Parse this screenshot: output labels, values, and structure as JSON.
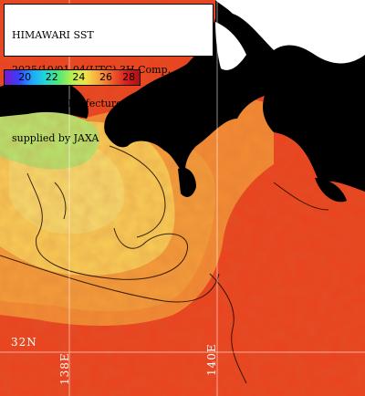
{
  "title": {
    "lines": [
      "HIMAWARI SST",
      "2025/10/01 04(UTC) 3H Comp.",
      "Kanagawa Prefecture",
      "supplied by JAXA"
    ]
  },
  "colorbar": {
    "labels": [
      "20",
      "22",
      "24",
      "26",
      "28"
    ],
    "range_min": 19,
    "range_max": 29
  },
  "grid": {
    "lat_label": "32N",
    "lon_labels": [
      "138E",
      "140E"
    ]
  },
  "colors": {
    "land": "#000000",
    "sea_warm": "#e9441f",
    "sea_mid": "#f39a3a",
    "sea_cool": "#f6d25c",
    "sea_cold": "#9ee27a",
    "grid": "#ffffff"
  }
}
